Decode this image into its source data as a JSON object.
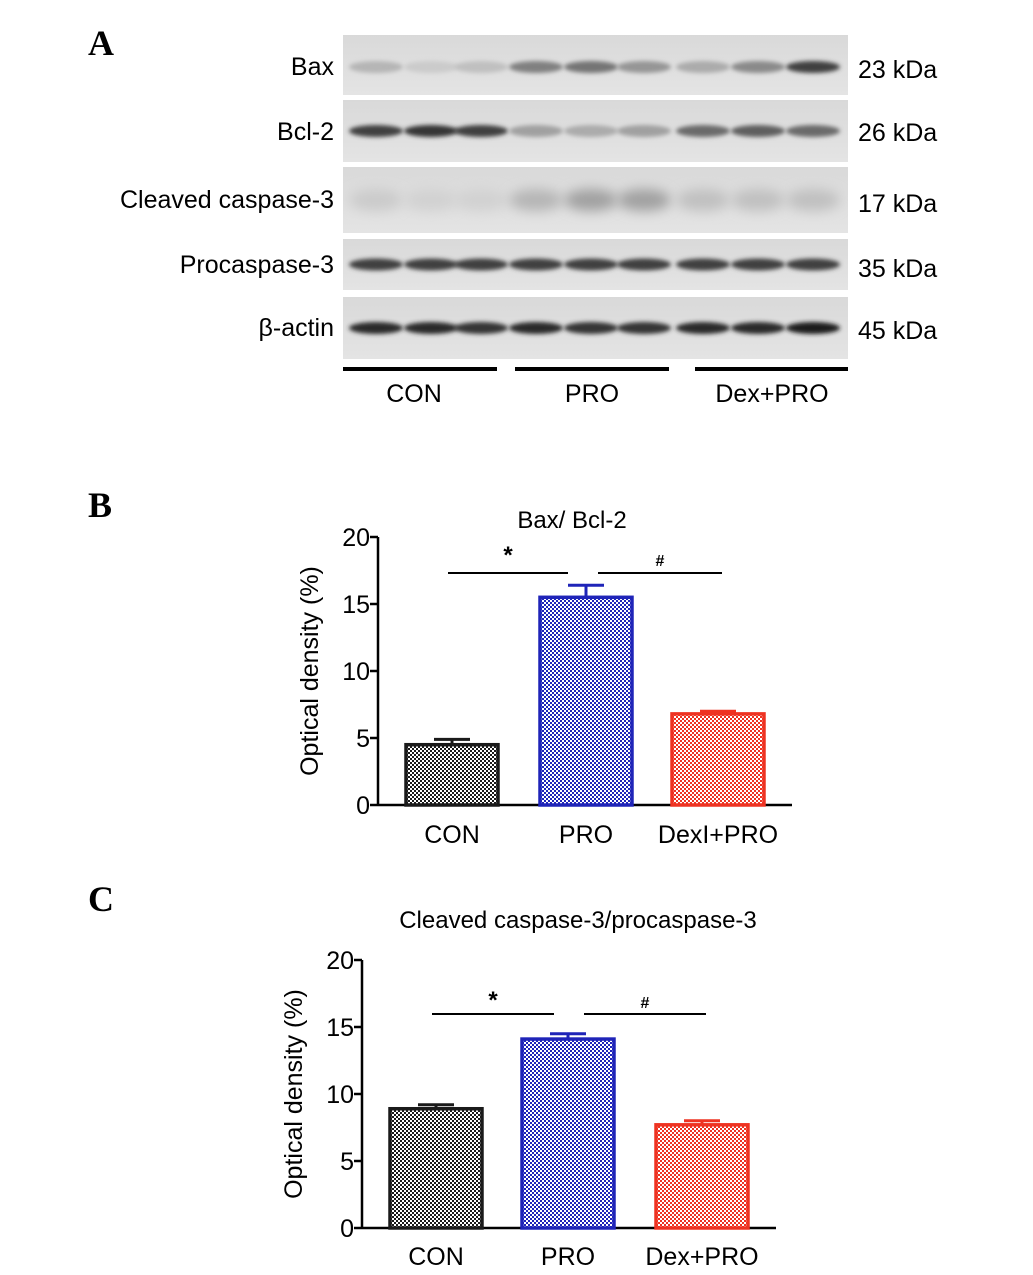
{
  "panels": {
    "a": "A",
    "b": "B",
    "c": "C"
  },
  "blot": {
    "rows": [
      {
        "label": "Bax",
        "size": "23 kDa",
        "intensity": [
          0.25,
          0.15,
          0.2,
          0.5,
          0.55,
          0.4,
          0.3,
          0.45,
          0.8
        ]
      },
      {
        "label": "Bcl-2",
        "size": "26 kDa",
        "intensity": [
          0.8,
          0.85,
          0.8,
          0.35,
          0.3,
          0.35,
          0.6,
          0.65,
          0.6
        ]
      },
      {
        "label": "Cleaved caspase-3",
        "size": "17 kDa",
        "intensity": [
          0.15,
          0.12,
          0.12,
          0.25,
          0.35,
          0.35,
          0.2,
          0.2,
          0.2
        ]
      },
      {
        "label": "Procaspase-3",
        "size": "35 kDa",
        "intensity": [
          0.8,
          0.8,
          0.8,
          0.8,
          0.8,
          0.8,
          0.8,
          0.8,
          0.8
        ]
      },
      {
        "label": "β-actin",
        "size": "45 kDa",
        "intensity": [
          0.9,
          0.9,
          0.85,
          0.9,
          0.85,
          0.85,
          0.9,
          0.9,
          0.95
        ]
      }
    ],
    "groups": [
      "CON",
      "PRO",
      "Dex+PRO"
    ]
  },
  "colors": {
    "con": "#1a1a1a",
    "pro": "#1f24b8",
    "dex": "#ee3322"
  },
  "chart_data": [
    {
      "type": "bar",
      "title": "Bax/ Bcl-2",
      "ylabel": "Optical density (%)",
      "xlabel": "",
      "categories": [
        "CON",
        "PRO",
        "DexI+PRO"
      ],
      "values": [
        4.5,
        15.5,
        6.8
      ],
      "errors": [
        0.4,
        0.9,
        0.2
      ],
      "ylim": [
        0,
        20
      ],
      "yticks": [
        0,
        5,
        10,
        15,
        20
      ],
      "annotations": [
        {
          "text": "*",
          "from": 0,
          "to": 1
        },
        {
          "text": "#",
          "from": 1,
          "to": 2
        }
      ]
    },
    {
      "type": "bar",
      "title": "Cleaved caspase-3/procaspase-3",
      "ylabel": "Optical density (%)",
      "xlabel": "",
      "categories": [
        "CON",
        "PRO",
        "Dex+PRO"
      ],
      "values": [
        8.9,
        14.1,
        7.7
      ],
      "errors": [
        0.3,
        0.4,
        0.3
      ],
      "ylim": [
        0,
        20
      ],
      "yticks": [
        0,
        5,
        10,
        15,
        20
      ],
      "annotations": [
        {
          "text": "*",
          "from": 0,
          "to": 1
        },
        {
          "text": "#",
          "from": 1,
          "to": 2
        }
      ]
    }
  ]
}
